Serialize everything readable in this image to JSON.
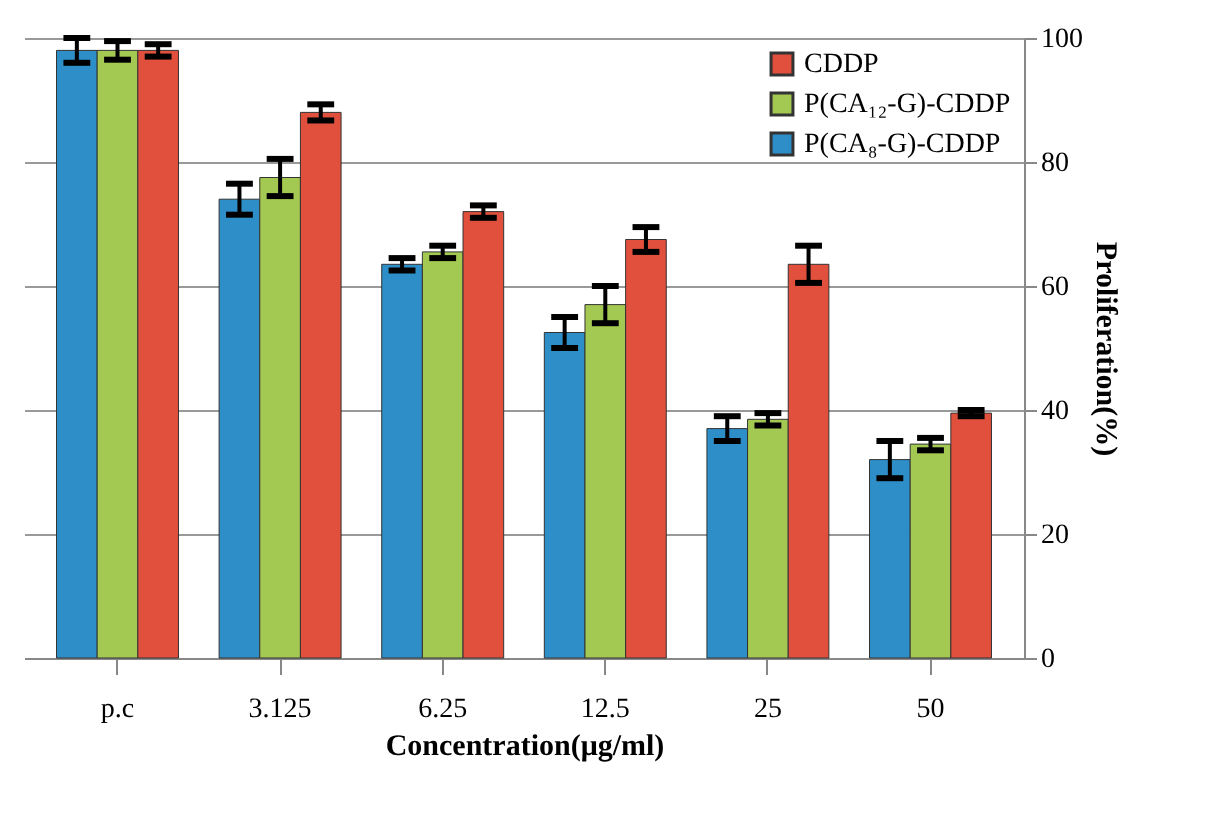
{
  "chart_data": {
    "type": "bar",
    "xlabel": "Concentration(μg/ml)",
    "ylabel": "Proliferation(%)",
    "categories": [
      "p.c",
      "3.125",
      "6.25",
      "12.5",
      "25",
      "50"
    ],
    "series": [
      {
        "name": "P(CA₈-G)-CDDP",
        "color": "#2e8fc8",
        "values": [
          98,
          74,
          63.5,
          52.5,
          37,
          32
        ],
        "errors": [
          2,
          2.5,
          1,
          2.5,
          2,
          3
        ]
      },
      {
        "name": "P(CA₁₂-G)-CDDP",
        "color": "#a4c952",
        "values": [
          98,
          77.5,
          65.5,
          57,
          38.5,
          34.5
        ],
        "errors": [
          1.5,
          3,
          1,
          3,
          1,
          1
        ]
      },
      {
        "name": "CDDP",
        "color": "#e0503c",
        "values": [
          98,
          88,
          72,
          67.5,
          63.5,
          39.5
        ],
        "errors": [
          1,
          1.3,
          1,
          2,
          3,
          0.5
        ]
      }
    ],
    "ylim": [
      0,
      100
    ],
    "yticks": [
      0,
      20,
      40,
      60,
      80,
      100
    ],
    "grid": "y",
    "legend": "top right"
  }
}
